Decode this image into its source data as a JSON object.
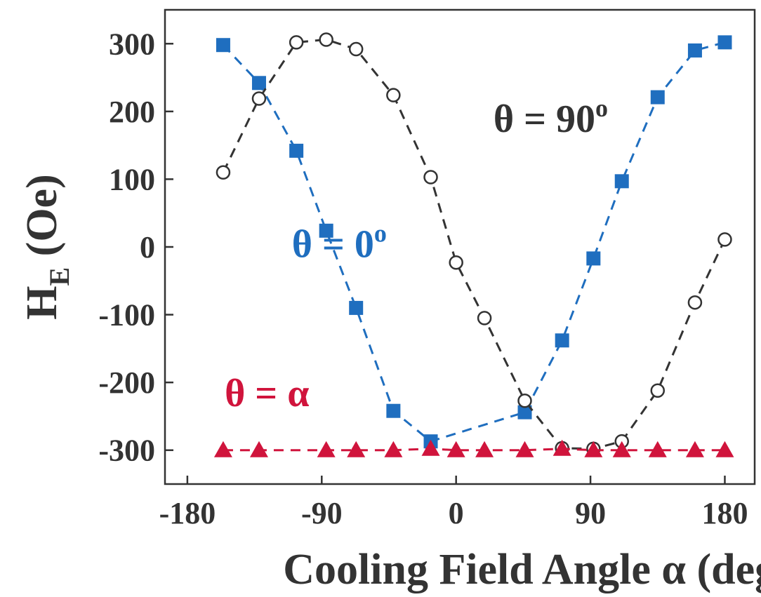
{
  "chart_data": {
    "type": "line",
    "xlabel": "Cooling Field Angle α (deg)",
    "ylabel": {
      "main": "H",
      "sub": "E",
      "rest": " (Oe)"
    },
    "xlim": [
      -195,
      200
    ],
    "ylim": [
      -350,
      350
    ],
    "xticks": [
      -180,
      -90,
      0,
      90,
      180
    ],
    "yticks": [
      -300,
      -200,
      -100,
      0,
      100,
      200,
      300
    ],
    "series": [
      {
        "name": "θ = 0",
        "sup": "o",
        "color": "#1f6ebf",
        "marker": "square",
        "label_pos": [
          -110,
          -15
        ],
        "x": [
          -156,
          -132,
          -107,
          -87,
          -67,
          -42,
          -17,
          46,
          71,
          92,
          111,
          135,
          160,
          180
        ],
        "values": [
          298,
          242,
          142,
          24,
          -90,
          -242,
          -287,
          -244,
          -138,
          -17,
          97,
          221,
          290,
          302
        ]
      },
      {
        "name": "θ = 90",
        "sup": "o",
        "color": "#333333",
        "marker": "circle",
        "label_pos": [
          25,
          170
        ],
        "x": [
          -156,
          -132,
          -107,
          -87,
          -67,
          -42,
          -17,
          0,
          19,
          46,
          71,
          92,
          111,
          135,
          160,
          180
        ],
        "values": [
          110,
          219,
          302,
          306,
          292,
          224,
          103,
          -23,
          -105,
          -227,
          -297,
          -298,
          -287,
          -212,
          -82,
          11
        ]
      },
      {
        "name": "θ = α",
        "sup": null,
        "color": "#d0143c",
        "marker": "triangle",
        "label_pos": [
          -155,
          -235
        ],
        "x": [
          -156,
          -132,
          -87,
          -67,
          -42,
          -17,
          0,
          19,
          46,
          71,
          92,
          111,
          135,
          160,
          180
        ],
        "values": [
          -300,
          -300,
          -300,
          -300,
          -300,
          -298,
          -300,
          -300,
          -300,
          -298,
          -300,
          -300,
          -300,
          -300,
          -300
        ]
      }
    ]
  }
}
